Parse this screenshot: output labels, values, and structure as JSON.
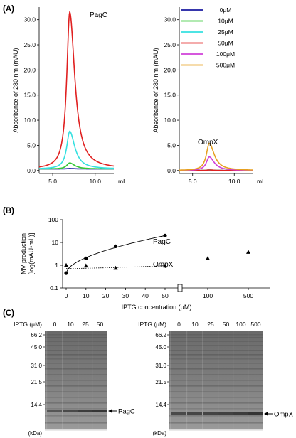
{
  "panels": {
    "a_label": "(A)",
    "b_label": "(B)",
    "c_label": "(C)"
  },
  "chart_data": [
    {
      "type": "line",
      "panel": "A-left",
      "title": "PagC",
      "ylabel": "Absorbance of 280 nm (mAU)",
      "xlabel": "mL",
      "ylim": [
        -0.6,
        32.5
      ],
      "xlim": [
        3.4,
        12.2
      ],
      "yticks": [
        "0.0",
        "5.0",
        "10.0",
        "15.0",
        "20.0",
        "25.0",
        "30.0"
      ],
      "xticks": [
        "5.0",
        "10.0"
      ],
      "peak_center_ml": 7.0,
      "series": [
        {
          "name": "0μM",
          "color": "#1a1aa0",
          "baseline": 0.3,
          "peak": 0.4
        },
        {
          "name": "10μM",
          "color": "#33c733",
          "baseline": 0.3,
          "peak": 1.5
        },
        {
          "name": "25μM",
          "color": "#35e0e0",
          "baseline": 0.3,
          "peak": 7.8
        },
        {
          "name": "50μM",
          "color": "#e02020",
          "baseline": 0.3,
          "peak": 31.5
        }
      ]
    },
    {
      "type": "line",
      "panel": "A-right",
      "title": "OmpX",
      "ylabel": "Absorbance of 280 nm (mAU)",
      "xlabel": "mL",
      "ylim": [
        -0.6,
        32.5
      ],
      "xlim": [
        3.4,
        12.2
      ],
      "yticks": [
        "0.0",
        "5.0",
        "10.0",
        "15.0",
        "20.0",
        "25.0",
        "30.0"
      ],
      "xticks": [
        "5.0",
        "10.0"
      ],
      "peak_center_ml": 7.0,
      "series": [
        {
          "name": "0μM",
          "color": "#1a1aa0",
          "baseline": 0.0,
          "peak": 0.0
        },
        {
          "name": "10μM",
          "color": "#33c733",
          "baseline": 0.0,
          "peak": 0.1
        },
        {
          "name": "25μM",
          "color": "#35e0e0",
          "baseline": 0.0,
          "peak": 0.1
        },
        {
          "name": "50μM",
          "color": "#e02020",
          "baseline": 0.0,
          "peak": 0.1
        },
        {
          "name": "100μM",
          "color": "#d040d8",
          "baseline": 0.0,
          "peak": 2.7
        },
        {
          "name": "500μM",
          "color": "#e6a020",
          "baseline": 0.0,
          "peak": 5.4
        }
      ],
      "legend": "top-right"
    },
    {
      "type": "scatter",
      "panel": "B",
      "xlabel": "IPTG concentration (μM)",
      "ylabel": "MV production",
      "ylabel2": "[log(mAU•mL)]",
      "yscale": "log",
      "ylim": [
        0.1,
        100
      ],
      "yticks": [
        "0.1",
        "1",
        "10",
        "100"
      ],
      "xticks_left": [
        "0",
        "10",
        "20",
        "30",
        "40",
        "50"
      ],
      "xticks_right": [
        "100",
        "500"
      ],
      "x_axis_break": true,
      "series": [
        {
          "name": "PagC",
          "marker": "circle",
          "line": "solid",
          "x": [
            0,
            10,
            25,
            50
          ],
          "y": [
            0.45,
            2.0,
            6.8,
            20.0
          ]
        },
        {
          "name": "OmpX",
          "marker": "triangle",
          "line": "dotted",
          "x": [
            0,
            10,
            25,
            50,
            100,
            500
          ],
          "y": [
            1.0,
            0.95,
            0.75,
            0.95,
            2.0,
            3.8
          ]
        }
      ]
    }
  ],
  "gels": [
    {
      "iptg_label": "IPTG (μM)",
      "lanes": [
        "0",
        "10",
        "25",
        "50"
      ],
      "markers": [
        "66.2",
        "45.0",
        "31.0",
        "21.5",
        "14.4"
      ],
      "units": "(kDa)",
      "band_label": "PagC",
      "band_intensity": [
        0.45,
        0.55,
        0.65,
        0.7
      ]
    },
    {
      "iptg_label": "IPTG (μM)",
      "lanes": [
        "0",
        "10",
        "25",
        "50",
        "100",
        "500"
      ],
      "markers": [
        "66.2",
        "45.0",
        "31.0",
        "21.5",
        "14.4"
      ],
      "units": "(kDa)",
      "band_label": "OmpX",
      "band_intensity": [
        0.55,
        0.58,
        0.6,
        0.62,
        0.66,
        0.72
      ]
    }
  ]
}
